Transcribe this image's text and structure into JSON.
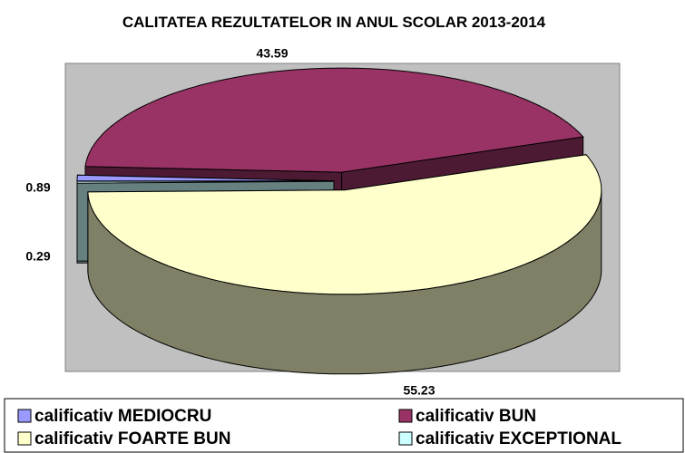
{
  "chart_data": {
    "type": "pie",
    "title": "CALITATEA REZULTATELOR IN ANUL SCOLAR 2013-2014",
    "categories": [
      "calificativ MEDIOCRU",
      "calificativ BUN",
      "calificativ FOARTE BUN",
      "calificativ EXCEPTIONAL"
    ],
    "values": [
      0.89,
      43.59,
      55.23,
      0.29
    ],
    "colors": [
      "#9999ff",
      "#993366",
      "#ffffcc",
      "#ccffff"
    ],
    "legend": "bottom"
  }
}
